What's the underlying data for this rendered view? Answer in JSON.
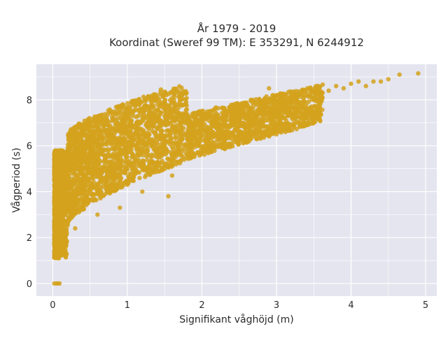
{
  "chart_data": {
    "type": "scatter",
    "title_lines": [
      "År 1979 - 2019",
      "Koordinat (Sweref 99 TM): E 353291, N 6244912"
    ],
    "xlabel": "Signifikant våghöjd (m)",
    "ylabel": "Vågperiod (s)",
    "xlim": [
      -0.22,
      5.15
    ],
    "ylim": [
      -0.55,
      9.55
    ],
    "xticks": [
      0,
      1,
      2,
      3,
      4,
      5
    ],
    "yticks": [
      0,
      2,
      4,
      6,
      8
    ],
    "grid": true,
    "legend": "none",
    "marker_color": "#d4a21c",
    "background_color": "#e5e5ef",
    "series": [
      {
        "values": [
          [
            0.02,
            0.0
          ],
          [
            0.05,
            0.0
          ],
          [
            0.07,
            0.0
          ],
          [
            0.09,
            0.0
          ],
          [
            0.05,
            1.2
          ],
          [
            0.08,
            1.1
          ],
          [
            0.12,
            1.6
          ],
          [
            0.1,
            2.0
          ],
          [
            0.06,
            2.6
          ],
          [
            0.04,
            3.4
          ],
          [
            0.08,
            4.3
          ],
          [
            0.06,
            5.2
          ],
          [
            0.15,
            2.1
          ],
          [
            0.2,
            2.6
          ],
          [
            0.18,
            3.5
          ],
          [
            0.14,
            4.8
          ],
          [
            0.2,
            5.9
          ],
          [
            0.25,
            6.3
          ],
          [
            0.3,
            6.0
          ],
          [
            0.3,
            2.4
          ],
          [
            0.35,
            3.1
          ],
          [
            0.4,
            4.2
          ],
          [
            0.45,
            5.2
          ],
          [
            0.5,
            6.4
          ],
          [
            0.48,
            7.0
          ],
          [
            0.6,
            3.0
          ],
          [
            0.65,
            4.0
          ],
          [
            0.7,
            5.0
          ],
          [
            0.75,
            5.8
          ],
          [
            0.8,
            6.5
          ],
          [
            0.9,
            3.3
          ],
          [
            0.95,
            4.3
          ],
          [
            1.0,
            5.3
          ],
          [
            1.05,
            6.0
          ],
          [
            1.1,
            6.8
          ],
          [
            1.2,
            4.0
          ],
          [
            1.3,
            5.0
          ],
          [
            1.4,
            5.8
          ],
          [
            1.45,
            6.6
          ],
          [
            1.5,
            7.3
          ],
          [
            1.6,
            4.7
          ],
          [
            1.7,
            5.7
          ],
          [
            1.8,
            6.3
          ],
          [
            1.9,
            7.0
          ],
          [
            2.0,
            6.6
          ],
          [
            2.1,
            6.0
          ],
          [
            2.3,
            6.6
          ],
          [
            2.4,
            7.1
          ],
          [
            2.5,
            7.4
          ],
          [
            2.6,
            6.9
          ],
          [
            2.8,
            7.0
          ],
          [
            2.9,
            7.5
          ],
          [
            3.0,
            7.3
          ],
          [
            3.1,
            7.7
          ],
          [
            3.2,
            7.9
          ],
          [
            3.4,
            7.8
          ],
          [
            3.5,
            8.1
          ],
          [
            3.6,
            8.3
          ],
          [
            3.7,
            8.4
          ],
          [
            3.8,
            8.6
          ],
          [
            3.9,
            8.5
          ],
          [
            4.0,
            8.7
          ],
          [
            4.1,
            8.8
          ],
          [
            4.2,
            8.6
          ],
          [
            4.3,
            8.8
          ],
          [
            4.4,
            8.8
          ],
          [
            4.5,
            8.9
          ],
          [
            4.65,
            9.1
          ],
          [
            4.9,
            9.15
          ],
          [
            1.45,
            8.45
          ],
          [
            1.55,
            3.8
          ],
          [
            2.9,
            8.5
          ],
          [
            3.5,
            8.4
          ]
        ]
      }
    ]
  }
}
